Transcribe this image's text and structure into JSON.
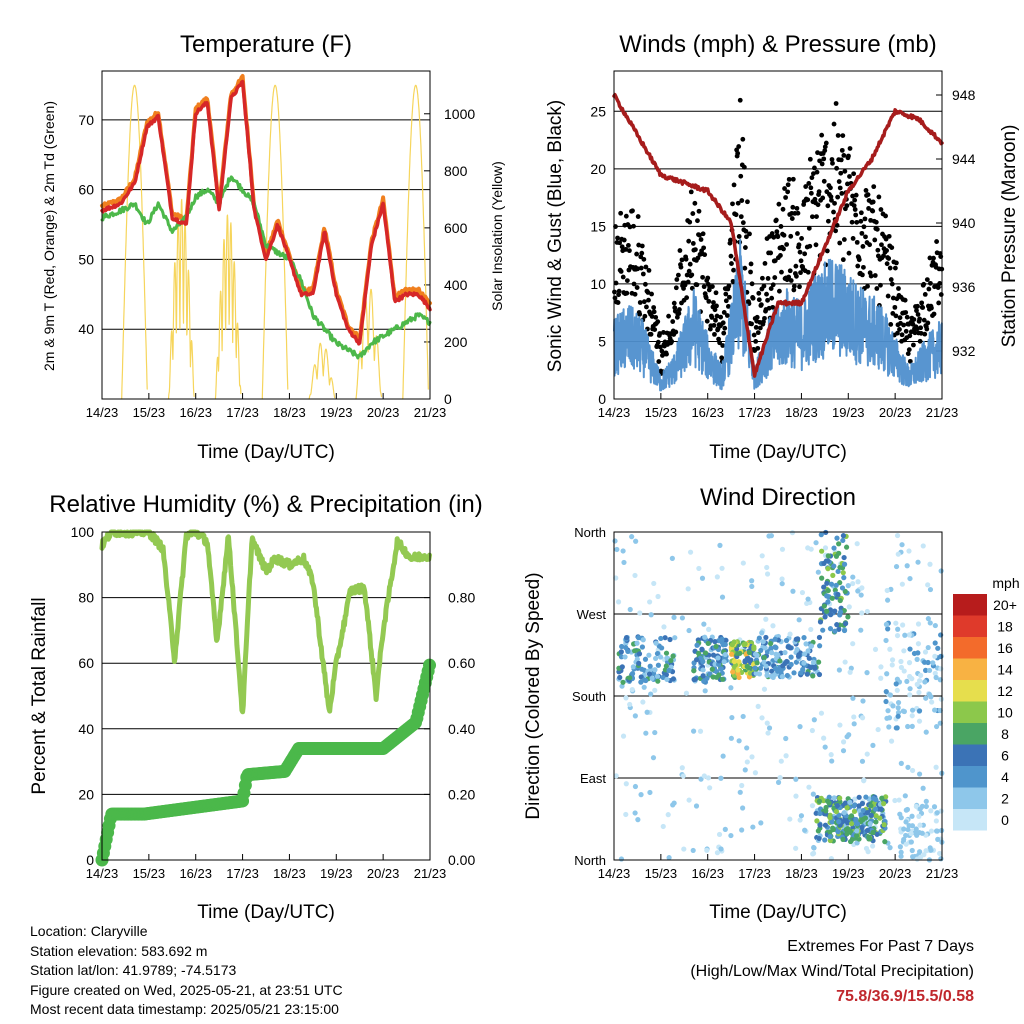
{
  "colors": {
    "temp": "#d62728",
    "temp9": "#f07f1e",
    "dew": "#4db84a",
    "solar": "#f6d55c",
    "wind": "#4f8fce",
    "gust": "#000000",
    "pressure": "#a61c1c",
    "rh": "#93c952",
    "rain": "#4bb84a",
    "grid": "#000000"
  },
  "charts": {
    "temp": {
      "title": "Temperature (F)",
      "xlabel": "Time (Day/UTC)",
      "ylabel": "2m & 9m T (Red, Orange) & 2m Td (Green)",
      "y2label": "Solar Insolation (Yellow)",
      "yticks": [
        "40",
        "50",
        "60",
        "70"
      ],
      "y2ticks": [
        "0",
        "200",
        "400",
        "600",
        "800",
        "1000"
      ]
    },
    "wind": {
      "title": "Winds (mph) & Pressure (mb)",
      "xlabel": "Time (Day/UTC)",
      "ylabel": "Sonic Wind & Gust (Blue, Black)",
      "y2label": "Station Pressure (Maroon)",
      "yticks": [
        "0",
        "5",
        "10",
        "15",
        "20",
        "25"
      ],
      "y2ticks": [
        "932",
        "936",
        "940",
        "944",
        "948"
      ]
    },
    "rh": {
      "title": "Relative Humidity (%) & Precipitation (in)",
      "xlabel": "Time (Day/UTC)",
      "ylabel": "Percent & Total Rainfall",
      "yticks": [
        "0",
        "20",
        "40",
        "60",
        "80",
        "100"
      ],
      "y2ticks": [
        "0.00",
        "0.20",
        "0.40",
        "0.60",
        "0.80"
      ]
    },
    "dir": {
      "title": "Wind Direction",
      "xlabel": "Time (Day/UTC)",
      "ylabel": "Direction (Colored By Speed)",
      "yticks": [
        "North",
        "East",
        "South",
        "West",
        "North"
      ],
      "legend_title": "mph",
      "legend_labels": [
        "0",
        "2",
        "4",
        "6",
        "8",
        "10",
        "12",
        "14",
        "16",
        "18",
        "20+"
      ],
      "legend_colors": [
        "#c6e6f7",
        "#8ec7ea",
        "#4f95cc",
        "#3b73b6",
        "#4aa564",
        "#8cc84b",
        "#e6de4d",
        "#f8b243",
        "#f36b2b",
        "#df3a2b",
        "#b71c1c"
      ]
    }
  },
  "xticks": [
    "14/23",
    "15/23",
    "16/23",
    "17/23",
    "18/23",
    "19/23",
    "20/23",
    "21/23"
  ],
  "chart_data": [
    {
      "type": "line",
      "title": "Temperature (F)",
      "x_days": [
        14.96,
        15.5,
        16.0,
        16.5,
        17.0,
        17.5,
        18.0,
        18.5,
        19.0,
        19.5,
        20.0,
        20.5,
        21.0
      ],
      "series": [
        {
          "name": "2m T",
          "values": [
            57,
            70.5,
            54,
            72.5,
            57,
            51,
            55,
            45,
            54,
            40,
            58,
            44,
            43
          ]
        },
        {
          "name": "2m Td",
          "values": [
            56,
            58,
            54,
            60,
            58,
            51,
            51,
            42,
            39,
            37,
            38,
            41,
            41
          ]
        }
      ],
      "ylim": [
        30,
        77
      ],
      "y2lim": [
        0,
        1150
      ]
    },
    {
      "type": "scatter",
      "title": "Winds (mph) & Pressure (mb)",
      "series": [
        {
          "name": "Sonic Wind",
          "mean_approx": 4
        },
        {
          "name": "Gust",
          "max": 26.5
        },
        {
          "name": "Station Pressure",
          "x_days": [
            14.0,
            15.0,
            16.0,
            16.5,
            17.0,
            17.5,
            18.0,
            19.0,
            19.5,
            20.0,
            20.5,
            21.0
          ],
          "values": [
            948,
            943,
            942,
            940,
            930.5,
            935,
            935,
            942,
            944,
            947,
            946.5,
            945
          ]
        }
      ],
      "ylim": [
        0,
        28.5
      ],
      "y2lim": [
        929,
        949.5
      ]
    },
    {
      "type": "line",
      "title": "Relative Humidity (%) & Precipitation (in)",
      "series": [
        {
          "name": "RH",
          "x_days": [
            14.0,
            14.5,
            15.0,
            15.5,
            16.0,
            16.5,
            17.0,
            17.5,
            18.0,
            18.5,
            19.0,
            19.5,
            20.0,
            20.5,
            21.0
          ],
          "values": [
            96,
            100,
            100,
            61,
            99,
            78,
            44,
            97,
            92,
            85,
            45,
            82,
            50,
            97,
            93
          ]
        },
        {
          "name": "Total Rainfall",
          "x_days": [
            14.0,
            14.2,
            14.9,
            17.0,
            17.1,
            17.9,
            18.2,
            20.0,
            20.7,
            21.0
          ],
          "values": [
            0.0,
            0.14,
            0.14,
            0.18,
            0.26,
            0.27,
            0.34,
            0.34,
            0.42,
            0.6
          ]
        }
      ],
      "ylim": [
        0,
        100
      ],
      "y2lim": [
        0,
        1.0
      ]
    },
    {
      "type": "scatter",
      "title": "Wind Direction",
      "y_categories": [
        "North",
        "East",
        "South",
        "West",
        "North"
      ],
      "note": "direction points colored by wind speed"
    }
  ],
  "info": {
    "location": "Location: Claryville",
    "elevation": "Station elevation: 583.692 m",
    "latlon": "Station lat/lon: 41.9789; -74.5173",
    "created": "Figure created on Wed, 2025-05-21, at 23:51 UTC",
    "recent": "Most recent data timestamp: 2025/05/21 23:15:00"
  },
  "extremes": {
    "title": "Extremes For Past 7 Days",
    "subtitle": "(High/Low/Max Wind/Total Precipitation)",
    "values": "75.8/36.9/15.5/0.58"
  }
}
